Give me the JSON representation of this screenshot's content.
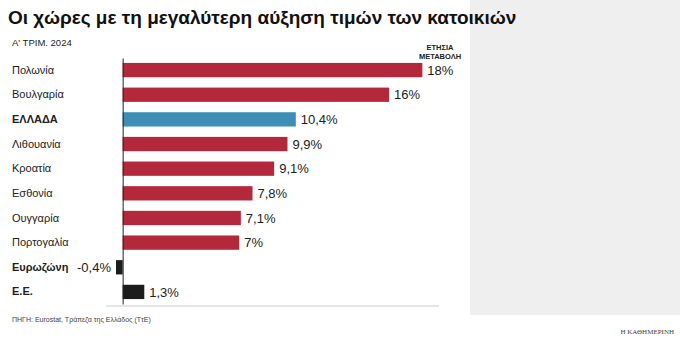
{
  "chart_data": {
    "type": "bar",
    "orientation": "horizontal",
    "title": "Οι χώρες με τη μεγαλύτερη αύξηση τιμών των κατοικιών",
    "subtitle": "Α' ΤΡΙΜ. 2024",
    "annotation": "ΕΤΗΣΙΑ ΜΕΤΑΒΟΛΗ",
    "source": "ΠΗΓΗ: Eurostat, Τράπεζα της Ελλάδος (ΤτΕ)",
    "credit": "Η ΚΑΘΗΜΕΡΙΝΗ",
    "categories": [
      "Πολωνία",
      "Βουλγαρία",
      "ΕΛΛΑΔΑ",
      "Λιθουανία",
      "Κροατία",
      "Εσθονία",
      "Ουγγαρία",
      "Πορτογαλία",
      "Ευρωζώνη",
      "Ε.Ε."
    ],
    "values": [
      18,
      16,
      10.4,
      9.9,
      9.1,
      7.8,
      7.1,
      7,
      -0.4,
      1.3
    ],
    "value_labels": [
      "18%",
      "16%",
      "10,4%",
      "9,9%",
      "9,1%",
      "7,8%",
      "7,1%",
      "7%",
      "-0,4%",
      "1,3%"
    ],
    "colors": [
      "#b3293b",
      "#b3293b",
      "#3d8db5",
      "#b3293b",
      "#b3293b",
      "#b3293b",
      "#b3293b",
      "#b3293b",
      "#1c1c1c",
      "#1c1c1c"
    ],
    "xlim": [
      -1,
      19
    ],
    "data_labels": true,
    "tick_labels": "y",
    "grid": false
  }
}
